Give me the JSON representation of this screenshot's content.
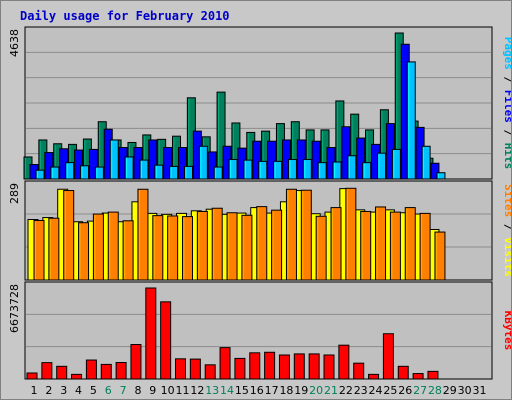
{
  "title": "Daily usage for February 2010",
  "chart_data": [
    {
      "type": "bar",
      "panel": "hits-files-pages",
      "max_label": "4638",
      "ylim": [
        0,
        4638
      ],
      "x": [
        "1",
        "2",
        "3",
        "4",
        "5",
        "6",
        "7",
        "8",
        "9",
        "10",
        "11",
        "12",
        "13",
        "14",
        "15",
        "16",
        "17",
        "18",
        "19",
        "20",
        "21",
        "22",
        "23",
        "24",
        "25",
        "26",
        "27",
        "28",
        "29",
        "30",
        "31"
      ],
      "weekend_days": [
        "6",
        "7",
        "13",
        "14",
        "20",
        "21",
        "27",
        "28"
      ],
      "series": [
        {
          "name": "Hits",
          "color": "#00805c",
          "values": [
            700,
            1240,
            1120,
            1100,
            1270,
            1820,
            1240,
            1160,
            1400,
            1260,
            1360,
            2580,
            1340,
            2760,
            1780,
            1480,
            1520,
            1760,
            1820,
            1560,
            1560,
            2480,
            2060,
            1560,
            2200,
            4638,
            1840,
            660,
            0,
            0,
            0
          ]
        },
        {
          "name": "Files",
          "color": "#0000ff",
          "values": [
            460,
            840,
            960,
            920,
            940,
            1580,
            1000,
            1000,
            1240,
            1000,
            1000,
            1520,
            860,
            1040,
            980,
            1200,
            1200,
            1240,
            1240,
            1200,
            1000,
            1660,
            1300,
            1100,
            1760,
            4280,
            1640,
            500,
            0,
            0,
            0
          ]
        },
        {
          "name": "Pages",
          "color": "#00c0ff",
          "values": [
            280,
            380,
            520,
            420,
            380,
            1240,
            700,
            600,
            440,
            400,
            400,
            1040,
            380,
            620,
            600,
            560,
            560,
            620,
            620,
            520,
            540,
            740,
            520,
            820,
            940,
            3720,
            1040,
            200,
            0,
            0,
            0
          ]
        }
      ]
    },
    {
      "type": "bar",
      "panel": "visits-sites",
      "max_label": "289",
      "ylim": [
        0,
        289
      ],
      "series": [
        {
          "name": "Visits",
          "color": "#ffff00",
          "values": [
            188,
            194,
            282,
            181,
            183,
            208,
            181,
            243,
            207,
            204,
            207,
            215,
            220,
            204,
            208,
            225,
            208,
            243,
            278,
            206,
            211,
            284,
            218,
            211,
            218,
            209,
            205,
            157,
            0,
            0,
            0
          ]
        },
        {
          "name": "Sites",
          "color": "#ff8000",
          "values": [
            185,
            192,
            278,
            178,
            205,
            211,
            184,
            282,
            200,
            199,
            197,
            213,
            223,
            209,
            201,
            228,
            217,
            282,
            279,
            198,
            225,
            285,
            213,
            227,
            211,
            225,
            207,
            149,
            0,
            0,
            0
          ]
        }
      ]
    },
    {
      "type": "bar",
      "panel": "kbytes",
      "max_label": "6673728",
      "ylim": [
        0,
        6673728
      ],
      "series": [
        {
          "name": "KBytes",
          "color": "#ff0000",
          "values": [
            440000,
            1200000,
            930000,
            340000,
            1390000,
            1070000,
            1210000,
            2530000,
            6673728,
            5660000,
            1480000,
            1460000,
            1040000,
            2300000,
            1510000,
            1920000,
            1960000,
            1760000,
            1840000,
            1840000,
            1760000,
            2480000,
            1160000,
            340000,
            3320000,
            930000,
            400000,
            560000,
            0,
            0,
            0
          ]
        }
      ]
    }
  ],
  "axis_labels": {
    "top_words": [
      {
        "text": "Pages",
        "color": "#00c0ff"
      },
      {
        "text": " / ",
        "color": "#000000"
      },
      {
        "text": "Files",
        "color": "#0000ff"
      },
      {
        "text": " / ",
        "color": "#000000"
      },
      {
        "text": "Hits",
        "color": "#00805c"
      }
    ],
    "mid_words": [
      {
        "text": "Sites",
        "color": "#ff8000"
      },
      {
        "text": " / ",
        "color": "#000000"
      },
      {
        "text": "Visits",
        "color": "#ffff00"
      }
    ],
    "bottom_words": [
      {
        "text": "KBytes",
        "color": "#ff0000"
      }
    ]
  },
  "colors": {
    "background": "#c8c8c8",
    "panel": "#c0c0c0",
    "title": "#0000c8",
    "weekday_label": "#000000",
    "weekend_label": "#00805c"
  }
}
